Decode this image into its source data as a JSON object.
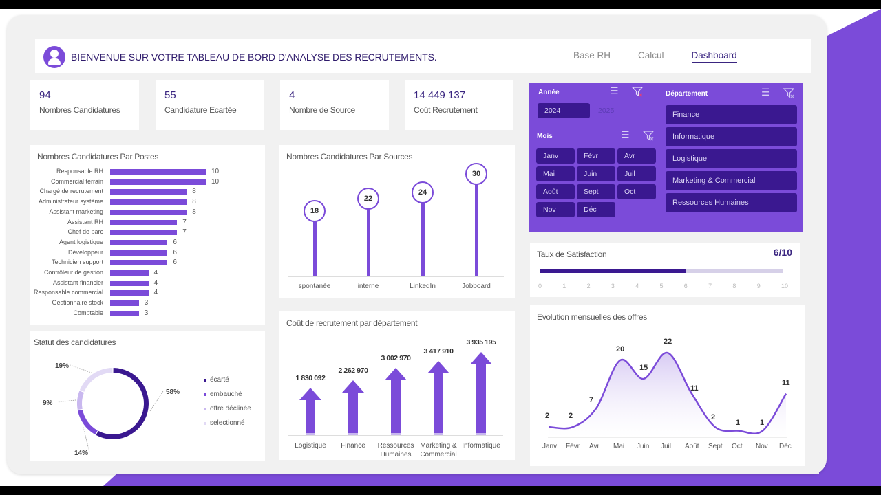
{
  "header": {
    "title": "BIENVENUE SUR VOTRE TABLEAU DE BORD D'ANALYSE DES RECRUTEMENTS.",
    "nav": [
      {
        "label": "Base RH",
        "active": false
      },
      {
        "label": "Calcul",
        "active": false
      },
      {
        "label": "Dashboard",
        "active": true
      }
    ]
  },
  "kpis": [
    {
      "value": "94",
      "label": "Nombres Candidatures"
    },
    {
      "value": "55",
      "label": "Candidature Ecartée"
    },
    {
      "value": "4",
      "label": "Nombre de Source"
    },
    {
      "value": "14 449 137",
      "label": "Coût Recrutement"
    }
  ],
  "filters": {
    "annee": {
      "title": "Année",
      "options": [
        "2024",
        "2025"
      ],
      "selected": "2024"
    },
    "mois": {
      "title": "Mois",
      "options": [
        "Janv",
        "Févr",
        "Avr",
        "Mai",
        "Juin",
        "Juil",
        "Août",
        "Sept",
        "Oct",
        "Nov",
        "Déc"
      ]
    },
    "departement": {
      "title": "Département",
      "options": [
        "Finance",
        "Informatique",
        "Logistique",
        "Marketing & Commercial",
        "Ressources Humaines"
      ]
    },
    "icons": {
      "multi_select": "multi-select-icon",
      "clear_filter": "clear-filter-icon"
    }
  },
  "satisfaction": {
    "title": "Taux de Satisfaction",
    "value_label": "6/10",
    "value": 6,
    "max": 10,
    "ticks": [
      "0",
      "1",
      "2",
      "3",
      "4",
      "5",
      "6",
      "7",
      "8",
      "9",
      "10"
    ]
  },
  "colors": {
    "accent": "#7b4bd9",
    "dark": "#3a1890",
    "text_dark": "#3a2580"
  },
  "chart_data": [
    {
      "type": "bar",
      "orientation": "horizontal",
      "title": "Nombres Candidatures Par Postes",
      "categories": [
        "Responsable RH",
        "Commercial terrain",
        "Chargé de recrutement",
        "Administrateur système",
        "Assistant marketing",
        "Assistant RH",
        "Chef de parc",
        "Agent logistique",
        "Développeur",
        "Technicien support",
        "Contrôleur de gestion",
        "Assistant financier",
        "Responsable commercial",
        "Gestionnaire stock",
        "Comptable"
      ],
      "values": [
        10,
        10,
        8,
        8,
        8,
        7,
        7,
        6,
        6,
        6,
        4,
        4,
        4,
        3,
        3
      ]
    },
    {
      "type": "pie",
      "title": "Statut des candidatures",
      "categories": [
        "écarté",
        "embauché",
        "offre déclinée",
        "selectionné"
      ],
      "values": [
        58,
        14,
        9,
        19
      ],
      "labels": [
        "58%",
        "14%",
        "9%",
        "19%"
      ],
      "colors": [
        "#3a1890",
        "#7b4bd9",
        "#c9b8ef",
        "#e2daf5"
      ],
      "legend_position": "right"
    },
    {
      "type": "bar",
      "style": "lollipop",
      "title": "Nombres Candidatures Par Sources",
      "categories": [
        "spontanée",
        "interne",
        "LinkedIn",
        "Jobboard"
      ],
      "values": [
        18,
        22,
        24,
        30
      ]
    },
    {
      "type": "bar",
      "style": "arrow",
      "title": "Coût de recrutement par département",
      "categories": [
        "Logistique",
        "Finance",
        "Ressources Humaines",
        "Marketing & Commercial",
        "Informatique"
      ],
      "values": [
        1830092,
        2262970,
        3002970,
        3417910,
        3935195
      ],
      "labels": [
        "1 830 092",
        "2 262 970",
        "3 002 970",
        "3 417 910",
        "3 935 195"
      ]
    },
    {
      "type": "area",
      "title": "Evolution mensuelles des offres",
      "categories": [
        "Janv",
        "Févr",
        "Avr",
        "Mai",
        "Juin",
        "Juil",
        "Août",
        "Sept",
        "Oct",
        "Nov",
        "Déc"
      ],
      "values": [
        2,
        2,
        7,
        20,
        15,
        22,
        11,
        2,
        1,
        1,
        11
      ]
    }
  ]
}
